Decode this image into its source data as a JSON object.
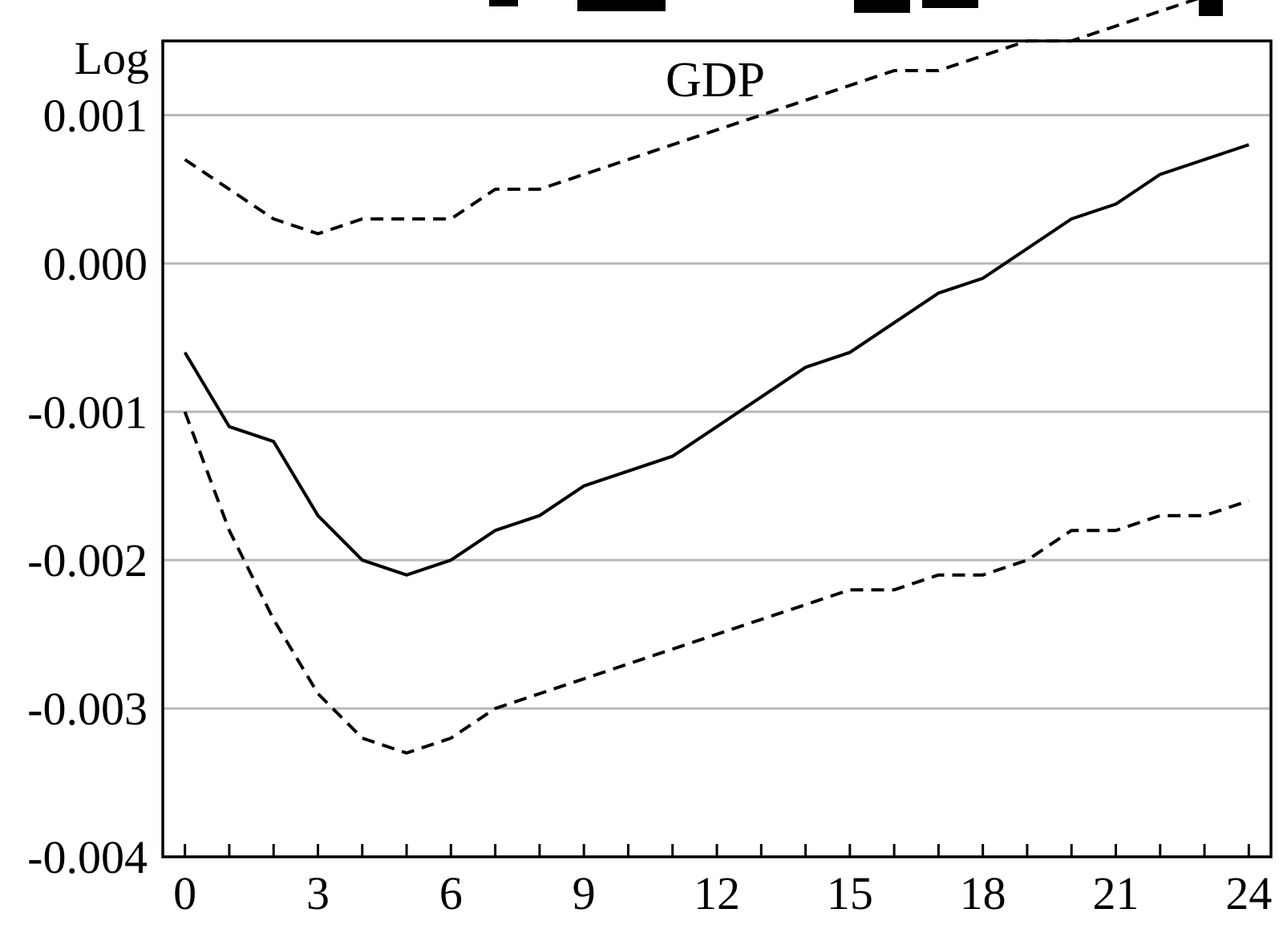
{
  "chart_data": {
    "type": "line",
    "title": "GDP",
    "ylabel": "Log",
    "xlabel": "",
    "x": [
      0,
      1,
      2,
      3,
      4,
      5,
      6,
      7,
      8,
      9,
      10,
      11,
      12,
      13,
      14,
      15,
      16,
      17,
      18,
      19,
      20,
      21,
      22,
      23,
      24
    ],
    "xlim": [
      -0.5,
      24.5
    ],
    "ylim": [
      -0.004,
      0.0015
    ],
    "x_ticks": [
      0,
      3,
      6,
      9,
      12,
      15,
      18,
      21,
      24
    ],
    "x_tick_labels": [
      "0",
      "3",
      "6",
      "9",
      "12",
      "15",
      "18",
      "21",
      "24"
    ],
    "y_ticks": [
      0.001,
      0.0,
      -0.001,
      -0.002,
      -0.003,
      -0.004
    ],
    "y_tick_labels": [
      "0.001",
      "0.000",
      "-0.001",
      "-0.002",
      "-0.003",
      "-0.004"
    ],
    "grid": true,
    "series": [
      {
        "style": "solid",
        "color": "#000000",
        "values": [
          -0.0006,
          -0.0011,
          -0.0012,
          -0.0017,
          -0.002,
          -0.0021,
          -0.002,
          -0.0018,
          -0.0017,
          -0.0015,
          -0.0014,
          -0.0013,
          -0.0011,
          -0.0009,
          -0.0007,
          -0.0006,
          -0.0004,
          -0.0002,
          -0.0001,
          0.0001,
          0.0003,
          0.0004,
          0.0006,
          0.0007,
          0.0008
        ]
      },
      {
        "style": "dashed",
        "color": "#000000",
        "values": [
          0.0007,
          0.0005,
          0.0003,
          0.0002,
          0.0003,
          0.0003,
          0.0003,
          0.0005,
          0.0005,
          0.0006,
          0.0007,
          0.0008,
          0.0009,
          0.001,
          0.0011,
          0.0012,
          0.0013,
          0.0013,
          0.0014,
          0.0015,
          0.0015,
          0.0016,
          0.0017,
          0.0018,
          0.0019
        ]
      },
      {
        "style": "dashed",
        "color": "#000000",
        "values": [
          -0.001,
          -0.0018,
          -0.0024,
          -0.0029,
          -0.0032,
          -0.0033,
          -0.0032,
          -0.003,
          -0.0029,
          -0.0028,
          -0.0027,
          -0.0026,
          -0.0025,
          -0.0024,
          -0.0023,
          -0.0022,
          -0.0022,
          -0.0021,
          -0.0021,
          -0.002,
          -0.0018,
          -0.0018,
          -0.0017,
          -0.0017,
          -0.0016
        ]
      }
    ]
  }
}
